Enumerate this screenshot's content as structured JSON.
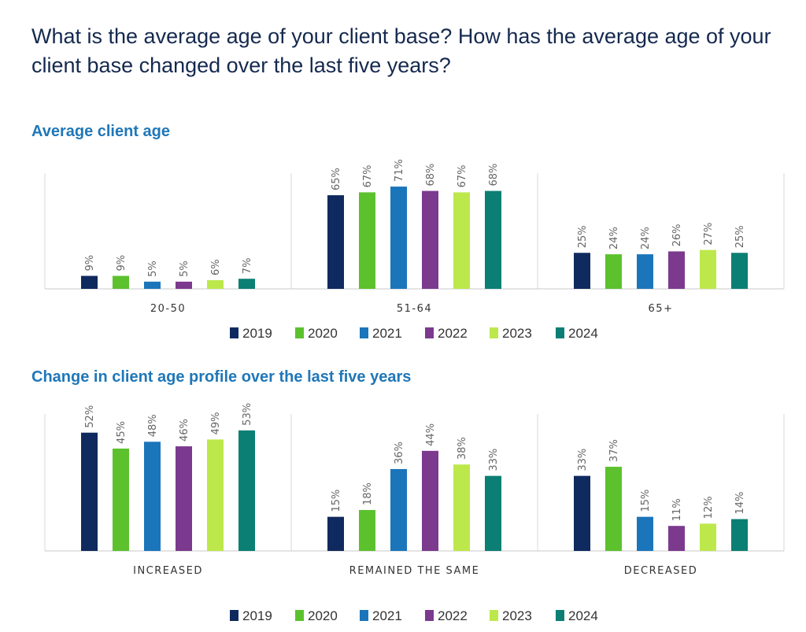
{
  "title": "What is the average age of your client base? How has the average age of your client base changed over the last five years?",
  "legend": [
    "2019",
    "2020",
    "2021",
    "2022",
    "2023",
    "2024"
  ],
  "colors": [
    "#0f2a5e",
    "#5cc12d",
    "#1b75bb",
    "#7b3a8e",
    "#bde84b",
    "#0b7f73"
  ],
  "chart_data": [
    {
      "type": "bar",
      "title": "Average client age",
      "categories": [
        "20-50",
        "51-64",
        "65+"
      ],
      "series": [
        {
          "name": "2019",
          "values": [
            9,
            65,
            25
          ]
        },
        {
          "name": "2020",
          "values": [
            9,
            67,
            24
          ]
        },
        {
          "name": "2021",
          "values": [
            5,
            71,
            24
          ]
        },
        {
          "name": "2022",
          "values": [
            5,
            68,
            26
          ]
        },
        {
          "name": "2023",
          "values": [
            6,
            67,
            27
          ]
        },
        {
          "name": "2024",
          "values": [
            7,
            68,
            25
          ]
        }
      ],
      "value_suffix": "%",
      "legend_position": "bottom"
    },
    {
      "type": "bar",
      "title": "Change in client age profile over the last five years",
      "categories": [
        "INCREASED",
        "REMAINED THE SAME",
        "DECREASED"
      ],
      "series": [
        {
          "name": "2019",
          "values": [
            52,
            15,
            33
          ]
        },
        {
          "name": "2020",
          "values": [
            45,
            18,
            37
          ]
        },
        {
          "name": "2021",
          "values": [
            48,
            36,
            15
          ]
        },
        {
          "name": "2022",
          "values": [
            46,
            44,
            11
          ]
        },
        {
          "name": "2023",
          "values": [
            49,
            38,
            12
          ]
        },
        {
          "name": "2024",
          "values": [
            53,
            33,
            14
          ]
        }
      ],
      "value_suffix": "%",
      "legend_position": "bottom"
    }
  ]
}
